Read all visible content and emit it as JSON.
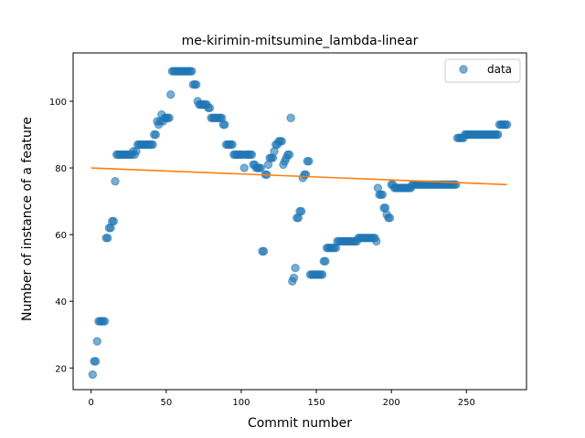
{
  "chart_data": {
    "type": "scatter",
    "title": "me-kirimin-mitsumine_lambda-linear",
    "xlabel": "Commit number",
    "ylabel": "Number of instance of a feature",
    "xlim": [
      -12,
      290
    ],
    "ylim": [
      13.5,
      114.5
    ],
    "xticks": [
      0,
      50,
      100,
      150,
      200,
      250
    ],
    "yticks": [
      20,
      40,
      60,
      80,
      100
    ],
    "grid": false,
    "legend": {
      "location": "top-right",
      "entries": [
        "data"
      ]
    },
    "colors": {
      "data": "#1f77b4",
      "fit": "#ff7f0e"
    },
    "series": [
      {
        "name": "data",
        "kind": "scatter",
        "points": [
          [
            1,
            18
          ],
          [
            2,
            22
          ],
          [
            3,
            22
          ],
          [
            4,
            28
          ],
          [
            5,
            34
          ],
          [
            6,
            34
          ],
          [
            7,
            34
          ],
          [
            8,
            34
          ],
          [
            9,
            34
          ],
          [
            10,
            59
          ],
          [
            11,
            59
          ],
          [
            12,
            62
          ],
          [
            13,
            62
          ],
          [
            14,
            64
          ],
          [
            15,
            64
          ],
          [
            16,
            76
          ],
          [
            17,
            84
          ],
          [
            18,
            84
          ],
          [
            19,
            84
          ],
          [
            20,
            84
          ],
          [
            21,
            84
          ],
          [
            22,
            84
          ],
          [
            23,
            84
          ],
          [
            24,
            84
          ],
          [
            25,
            84
          ],
          [
            26,
            84
          ],
          [
            27,
            84
          ],
          [
            28,
            85
          ],
          [
            29,
            84
          ],
          [
            30,
            85
          ],
          [
            31,
            87
          ],
          [
            32,
            87
          ],
          [
            33,
            87
          ],
          [
            34,
            87
          ],
          [
            35,
            87
          ],
          [
            36,
            87
          ],
          [
            37,
            87
          ],
          [
            38,
            87
          ],
          [
            39,
            87
          ],
          [
            40,
            87
          ],
          [
            41,
            87
          ],
          [
            42,
            90
          ],
          [
            43,
            90
          ],
          [
            44,
            94
          ],
          [
            45,
            93
          ],
          [
            46,
            94
          ],
          [
            47,
            96
          ],
          [
            48,
            94
          ],
          [
            49,
            95
          ],
          [
            50,
            95
          ],
          [
            51,
            95
          ],
          [
            52,
            95
          ],
          [
            53,
            102
          ],
          [
            54,
            109
          ],
          [
            55,
            109
          ],
          [
            56,
            109
          ],
          [
            57,
            109
          ],
          [
            58,
            109
          ],
          [
            59,
            109
          ],
          [
            60,
            109
          ],
          [
            61,
            109
          ],
          [
            62,
            109
          ],
          [
            63,
            109
          ],
          [
            64,
            109
          ],
          [
            65,
            109
          ],
          [
            66,
            109
          ],
          [
            67,
            109
          ],
          [
            68,
            105
          ],
          [
            69,
            105
          ],
          [
            70,
            105
          ],
          [
            71,
            100
          ],
          [
            72,
            99
          ],
          [
            73,
            99
          ],
          [
            74,
            99
          ],
          [
            75,
            99
          ],
          [
            76,
            99
          ],
          [
            77,
            99
          ],
          [
            78,
            98
          ],
          [
            79,
            98
          ],
          [
            80,
            95
          ],
          [
            81,
            95
          ],
          [
            82,
            95
          ],
          [
            83,
            95
          ],
          [
            84,
            95
          ],
          [
            85,
            95
          ],
          [
            86,
            95
          ],
          [
            87,
            95
          ],
          [
            88,
            93
          ],
          [
            89,
            93
          ],
          [
            90,
            87
          ],
          [
            91,
            87
          ],
          [
            92,
            87
          ],
          [
            93,
            87
          ],
          [
            94,
            87
          ],
          [
            95,
            84
          ],
          [
            96,
            84
          ],
          [
            97,
            84
          ],
          [
            98,
            84
          ],
          [
            99,
            84
          ],
          [
            100,
            84
          ],
          [
            101,
            84
          ],
          [
            102,
            80
          ],
          [
            103,
            84
          ],
          [
            104,
            84
          ],
          [
            105,
            84
          ],
          [
            106,
            84
          ],
          [
            107,
            84
          ],
          [
            108,
            81
          ],
          [
            109,
            81
          ],
          [
            110,
            80
          ],
          [
            111,
            80
          ],
          [
            112,
            80
          ],
          [
            113,
            80
          ],
          [
            114,
            55
          ],
          [
            115,
            55
          ],
          [
            116,
            78
          ],
          [
            117,
            78
          ],
          [
            118,
            81
          ],
          [
            119,
            83
          ],
          [
            120,
            83
          ],
          [
            121,
            83
          ],
          [
            122,
            85
          ],
          [
            123,
            87
          ],
          [
            124,
            87
          ],
          [
            125,
            88
          ],
          [
            126,
            88
          ],
          [
            127,
            88
          ],
          [
            128,
            81
          ],
          [
            129,
            82
          ],
          [
            130,
            83
          ],
          [
            131,
            84
          ],
          [
            132,
            84
          ],
          [
            133,
            95
          ],
          [
            134,
            46
          ],
          [
            135,
            47
          ],
          [
            136,
            50
          ],
          [
            137,
            65
          ],
          [
            138,
            65
          ],
          [
            139,
            67
          ],
          [
            140,
            67
          ],
          [
            141,
            77
          ],
          [
            142,
            78
          ],
          [
            143,
            78
          ],
          [
            144,
            82
          ],
          [
            145,
            82
          ],
          [
            146,
            48
          ],
          [
            147,
            48
          ],
          [
            148,
            48
          ],
          [
            149,
            48
          ],
          [
            150,
            48
          ],
          [
            151,
            48
          ],
          [
            152,
            48
          ],
          [
            153,
            48
          ],
          [
            154,
            48
          ],
          [
            155,
            52
          ],
          [
            156,
            52
          ],
          [
            157,
            56
          ],
          [
            158,
            56
          ],
          [
            159,
            56
          ],
          [
            160,
            56
          ],
          [
            161,
            56
          ],
          [
            162,
            56
          ],
          [
            163,
            56
          ],
          [
            164,
            58
          ],
          [
            165,
            58
          ],
          [
            166,
            58
          ],
          [
            167,
            58
          ],
          [
            168,
            58
          ],
          [
            169,
            58
          ],
          [
            170,
            58
          ],
          [
            171,
            58
          ],
          [
            172,
            58
          ],
          [
            173,
            58
          ],
          [
            174,
            58
          ],
          [
            175,
            58
          ],
          [
            176,
            58
          ],
          [
            177,
            58
          ],
          [
            178,
            59
          ],
          [
            179,
            59
          ],
          [
            180,
            59
          ],
          [
            181,
            59
          ],
          [
            182,
            59
          ],
          [
            183,
            59
          ],
          [
            184,
            59
          ],
          [
            185,
            59
          ],
          [
            186,
            59
          ],
          [
            187,
            59
          ],
          [
            188,
            59
          ],
          [
            189,
            59
          ],
          [
            190,
            58
          ],
          [
            191,
            74
          ],
          [
            192,
            72
          ],
          [
            193,
            72
          ],
          [
            194,
            72
          ],
          [
            195,
            68
          ],
          [
            196,
            68
          ],
          [
            197,
            66
          ],
          [
            198,
            65
          ],
          [
            199,
            65
          ],
          [
            200,
            75
          ],
          [
            201,
            75
          ],
          [
            202,
            74
          ],
          [
            203,
            74
          ],
          [
            204,
            74
          ],
          [
            205,
            74
          ],
          [
            206,
            74
          ],
          [
            207,
            74
          ],
          [
            208,
            74
          ],
          [
            209,
            74
          ],
          [
            210,
            74
          ],
          [
            211,
            74
          ],
          [
            212,
            74
          ],
          [
            213,
            74
          ],
          [
            214,
            75
          ],
          [
            215,
            75
          ],
          [
            216,
            75
          ],
          [
            217,
            75
          ],
          [
            218,
            75
          ],
          [
            219,
            75
          ],
          [
            220,
            75
          ],
          [
            221,
            75
          ],
          [
            222,
            75
          ],
          [
            223,
            75
          ],
          [
            224,
            75
          ],
          [
            225,
            75
          ],
          [
            226,
            75
          ],
          [
            227,
            75
          ],
          [
            228,
            75
          ],
          [
            229,
            75
          ],
          [
            230,
            75
          ],
          [
            231,
            75
          ],
          [
            232,
            75
          ],
          [
            233,
            75
          ],
          [
            234,
            75
          ],
          [
            235,
            75
          ],
          [
            236,
            75
          ],
          [
            237,
            75
          ],
          [
            238,
            75
          ],
          [
            239,
            75
          ],
          [
            240,
            75
          ],
          [
            241,
            75
          ],
          [
            242,
            75
          ],
          [
            243,
            75
          ],
          [
            244,
            89
          ],
          [
            245,
            89
          ],
          [
            246,
            89
          ],
          [
            247,
            89
          ],
          [
            248,
            89
          ],
          [
            249,
            90
          ],
          [
            250,
            90
          ],
          [
            251,
            90
          ],
          [
            252,
            90
          ],
          [
            253,
            90
          ],
          [
            254,
            90
          ],
          [
            255,
            90
          ],
          [
            256,
            90
          ],
          [
            257,
            90
          ],
          [
            258,
            90
          ],
          [
            259,
            90
          ],
          [
            260,
            90
          ],
          [
            261,
            90
          ],
          [
            262,
            90
          ],
          [
            263,
            90
          ],
          [
            264,
            90
          ],
          [
            265,
            90
          ],
          [
            266,
            90
          ],
          [
            267,
            90
          ],
          [
            268,
            90
          ],
          [
            269,
            90
          ],
          [
            270,
            90
          ],
          [
            271,
            90
          ],
          [
            272,
            93
          ],
          [
            273,
            93
          ],
          [
            274,
            93
          ],
          [
            275,
            93
          ],
          [
            276,
            93
          ],
          [
            277,
            93
          ]
        ]
      },
      {
        "kind": "line",
        "points": [
          [
            0,
            80
          ],
          [
            277,
            75
          ]
        ]
      }
    ]
  }
}
